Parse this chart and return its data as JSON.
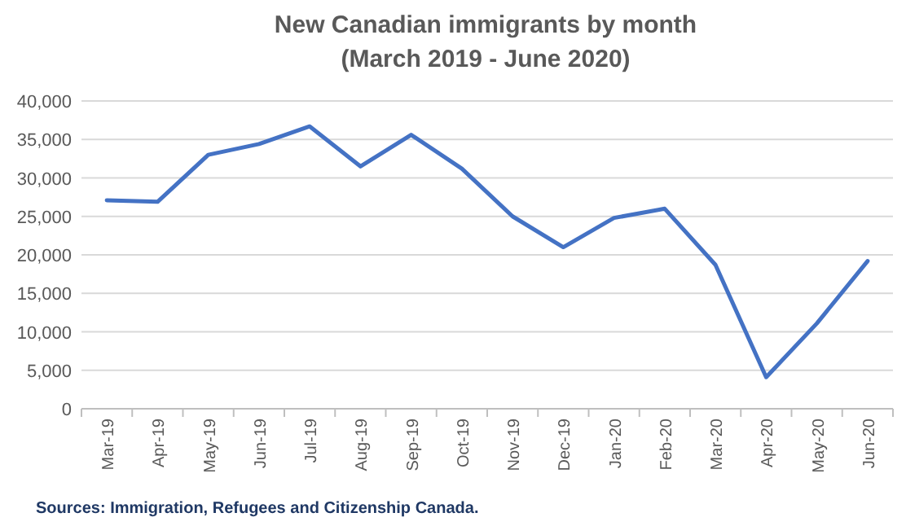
{
  "chart_data": {
    "type": "line",
    "title": "New Canadian immigrants by month\n(March 2019 - June 2020)",
    "categories": [
      "Mar-19",
      "Apr-19",
      "May-19",
      "Jun-19",
      "Jul-19",
      "Aug-19",
      "Sep-19",
      "Oct-19",
      "Nov-19",
      "Dec-19",
      "Jan-20",
      "Feb-20",
      "Mar-20",
      "Apr-20",
      "May-20",
      "Jun-20"
    ],
    "series": [
      {
        "color": "#4472c4",
        "values": [
          27100,
          26900,
          33000,
          34400,
          36700,
          31500,
          35600,
          31200,
          25000,
          21000,
          24800,
          26000,
          18700,
          4100,
          11100,
          19200
        ]
      }
    ],
    "ylim": [
      0,
      40000
    ],
    "yticks": [
      {
        "value": 0,
        "label": "0"
      },
      {
        "value": 5000,
        "label": "5,000"
      },
      {
        "value": 10000,
        "label": "10,000"
      },
      {
        "value": 15000,
        "label": "15,000"
      },
      {
        "value": 20000,
        "label": "20,000"
      },
      {
        "value": 25000,
        "label": "25,000"
      },
      {
        "value": 30000,
        "label": "30,000"
      },
      {
        "value": 35000,
        "label": "35,000"
      },
      {
        "value": 40000,
        "label": "40,000"
      }
    ],
    "grid": "y",
    "marker": "none",
    "line_style": "solid",
    "annotations": [
      "Sources: Immigration, Refugees and Citizenship Canada."
    ]
  }
}
